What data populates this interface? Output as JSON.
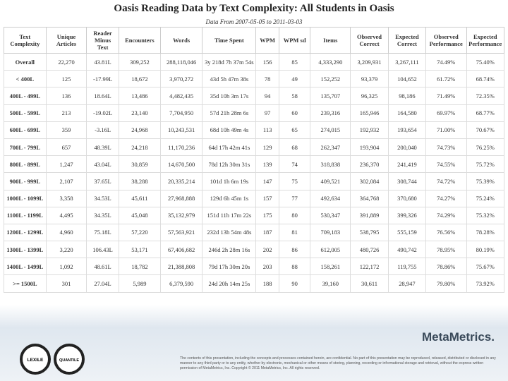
{
  "header": {
    "title": "Oasis Reading Data by Text Complexity: All Students in Oasis",
    "subtitle": "Data From 2007-05-05 to 2011-03-03"
  },
  "table": {
    "columns": [
      "Text Complexity",
      "Unique Articles",
      "Reader Minus Text",
      "Encounters",
      "Words",
      "Time Spent",
      "WPM",
      "WPM sd",
      "Items",
      "Observed Correct",
      "Expected Correct",
      "Observed Performance",
      "Expected Performance"
    ],
    "rows": [
      [
        "Overall",
        "22,270",
        "43.81L",
        "309,252",
        "288,118,046",
        "3y 218d 7h 37m 54s",
        "156",
        "85",
        "4,333,290",
        "3,209,931",
        "3,267,111",
        "74.49%",
        "75.40%"
      ],
      [
        "< 400L",
        "125",
        "-17.99L",
        "18,672",
        "3,970,272",
        "43d 5h 47m 38s",
        "78",
        "49",
        "152,252",
        "93,379",
        "104,652",
        "61.72%",
        "68.74%"
      ],
      [
        "400L - 499L",
        "136",
        "18.64L",
        "13,486",
        "4,482,435",
        "35d 10h 3m 17s",
        "94",
        "58",
        "135,707",
        "96,325",
        "98,186",
        "71.49%",
        "72.35%"
      ],
      [
        "500L - 599L",
        "213",
        "-19.02L",
        "23,140",
        "7,704,950",
        "57d 21h 28m 6s",
        "97",
        "60",
        "239,316",
        "165,946",
        "164,580",
        "69.97%",
        "68.77%"
      ],
      [
        "600L - 699L",
        "359",
        "-3.16L",
        "24,968",
        "10,243,531",
        "68d 10h 49m 4s",
        "113",
        "65",
        "274,015",
        "192,932",
        "193,654",
        "71.00%",
        "70.67%"
      ],
      [
        "700L - 799L",
        "657",
        "48.39L",
        "24,218",
        "11,170,236",
        "64d 17h 42m 41s",
        "129",
        "68",
        "262,347",
        "193,904",
        "200,040",
        "74.73%",
        "76.25%"
      ],
      [
        "800L - 899L",
        "1,247",
        "43.04L",
        "30,859",
        "14,670,500",
        "78d 12h 30m 31s",
        "139",
        "74",
        "318,838",
        "236,370",
        "241,419",
        "74.55%",
        "75.72%"
      ],
      [
        "900L - 999L",
        "2,107",
        "37.65L",
        "38,288",
        "20,335,214",
        "101d 1h 6m 19s",
        "147",
        "75",
        "409,521",
        "302,084",
        "308,744",
        "74.72%",
        "75.39%"
      ],
      [
        "1000L - 1099L",
        "3,358",
        "34.53L",
        "45,611",
        "27,968,888",
        "129d 6h 45m 1s",
        "157",
        "77",
        "492,634",
        "364,768",
        "370,680",
        "74.27%",
        "75.24%"
      ],
      [
        "1100L - 1199L",
        "4,495",
        "34.35L",
        "45,048",
        "35,132,979",
        "151d 11h 17m 22s",
        "175",
        "80",
        "530,347",
        "391,889",
        "399,326",
        "74.29%",
        "75.32%"
      ],
      [
        "1200L - 1299L",
        "4,960",
        "75.18L",
        "57,220",
        "57,563,921",
        "232d 13h 54m 48s",
        "187",
        "81",
        "709,183",
        "538,795",
        "555,159",
        "76.56%",
        "78.28%"
      ],
      [
        "1300L - 1399L",
        "3,220",
        "106.43L",
        "53,171",
        "67,406,682",
        "246d 2h 28m 16s",
        "202",
        "86",
        "612,005",
        "480,726",
        "490,742",
        "78.95%",
        "80.19%"
      ],
      [
        "1400L - 1499L",
        "1,092",
        "48.61L",
        "18,782",
        "21,388,808",
        "79d 17h 30m 20s",
        "203",
        "88",
        "158,261",
        "122,172",
        "119,755",
        "78.86%",
        "75.67%"
      ],
      [
        ">= 1500L",
        "301",
        "27.04L",
        "5,989",
        "6,379,590",
        "24d 20h 14m 25s",
        "188",
        "90",
        "39,160",
        "30,611",
        "28,947",
        "79.80%",
        "73.92%"
      ]
    ]
  },
  "footer": {
    "logos": [
      "LEXILE",
      "QUANTILE"
    ],
    "brand": "MetaMetrics.",
    "notice": "The contents of this presentation, including the concepts and processes contained herein, are confidential. No part of this presentation may be reproduced, released, distributed or disclosed in any manner to any third party or to any entity, whether by electronic, mechanical or other means of storing, planning, recording or informational storage and retrieval, without the express written permission of MetaMetrics, Inc. Copyright © 2011 MetaMetrics, Inc. All rights reserved."
  }
}
